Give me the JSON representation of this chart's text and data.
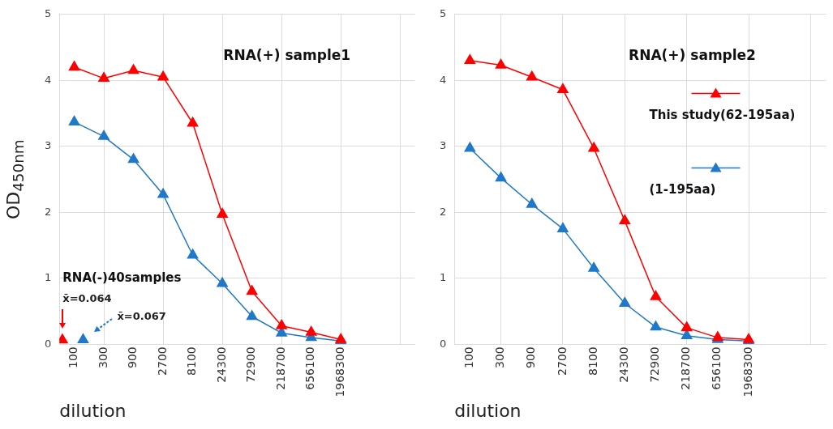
{
  "chart_data": [
    {
      "type": "line",
      "title": "RNA(+) sample1",
      "xlabel": "dilution",
      "ylabel": "OD$_{450nm}$",
      "categories": [
        "100",
        "300",
        "900",
        "2700",
        "8100",
        "24300",
        "72900",
        "218700",
        "656100",
        "1968300",
        null,
        null
      ],
      "series": [
        {
          "color": "#ff0000",
          "values": [
            4.2,
            4.03,
            4.15,
            4.05,
            3.35,
            1.97,
            0.8,
            0.28,
            0.18,
            0.07,
            null,
            null
          ]
        },
        {
          "color": "#1f78c8",
          "values": [
            3.37,
            3.15,
            2.8,
            2.27,
            1.35,
            0.92,
            0.42,
            0.17,
            0.1,
            0.05,
            null,
            null
          ]
        },
        {
          "type": "scatter",
          "color": "#ff0000",
          "x": [
            "100"
          ],
          "values": [
            0.064
          ]
        },
        {
          "type": "scatter",
          "color": "#1f78c8",
          "x": [
            "100"
          ],
          "values": [
            0.067
          ]
        }
      ],
      "annotations": [
        "RNA(-)40samples",
        "x̄=0.064",
        "x̄=0.067"
      ],
      "ylim": [
        0,
        5
      ],
      "yticks": [
        0,
        1,
        2,
        3,
        4,
        5
      ],
      "grid": true,
      "marker": "triangle"
    },
    {
      "type": "line",
      "title": "RNA(+) sample2",
      "xlabel": "dilution",
      "categories": [
        "100",
        "300",
        "900",
        "2700",
        "8100",
        "24300",
        "72900",
        "218700",
        "656100",
        "1968300",
        null,
        null
      ],
      "series": [
        {
          "name": "This study(62-195aa)",
          "color": "#ff0000",
          "values": [
            4.3,
            4.23,
            4.05,
            3.86,
            2.97,
            1.87,
            0.72,
            0.25,
            0.1,
            0.07,
            null,
            null
          ]
        },
        {
          "name": "(1-195aa)",
          "color": "#1f78c8",
          "values": [
            2.97,
            2.52,
            2.12,
            1.75,
            1.15,
            0.62,
            0.26,
            0.13,
            0.07,
            0.05,
            null,
            null
          ]
        }
      ],
      "ylim": [
        0,
        5
      ],
      "yticks": [
        0,
        1,
        2,
        3,
        4,
        5
      ],
      "grid": true,
      "legend": "right",
      "marker": "triangle"
    }
  ]
}
